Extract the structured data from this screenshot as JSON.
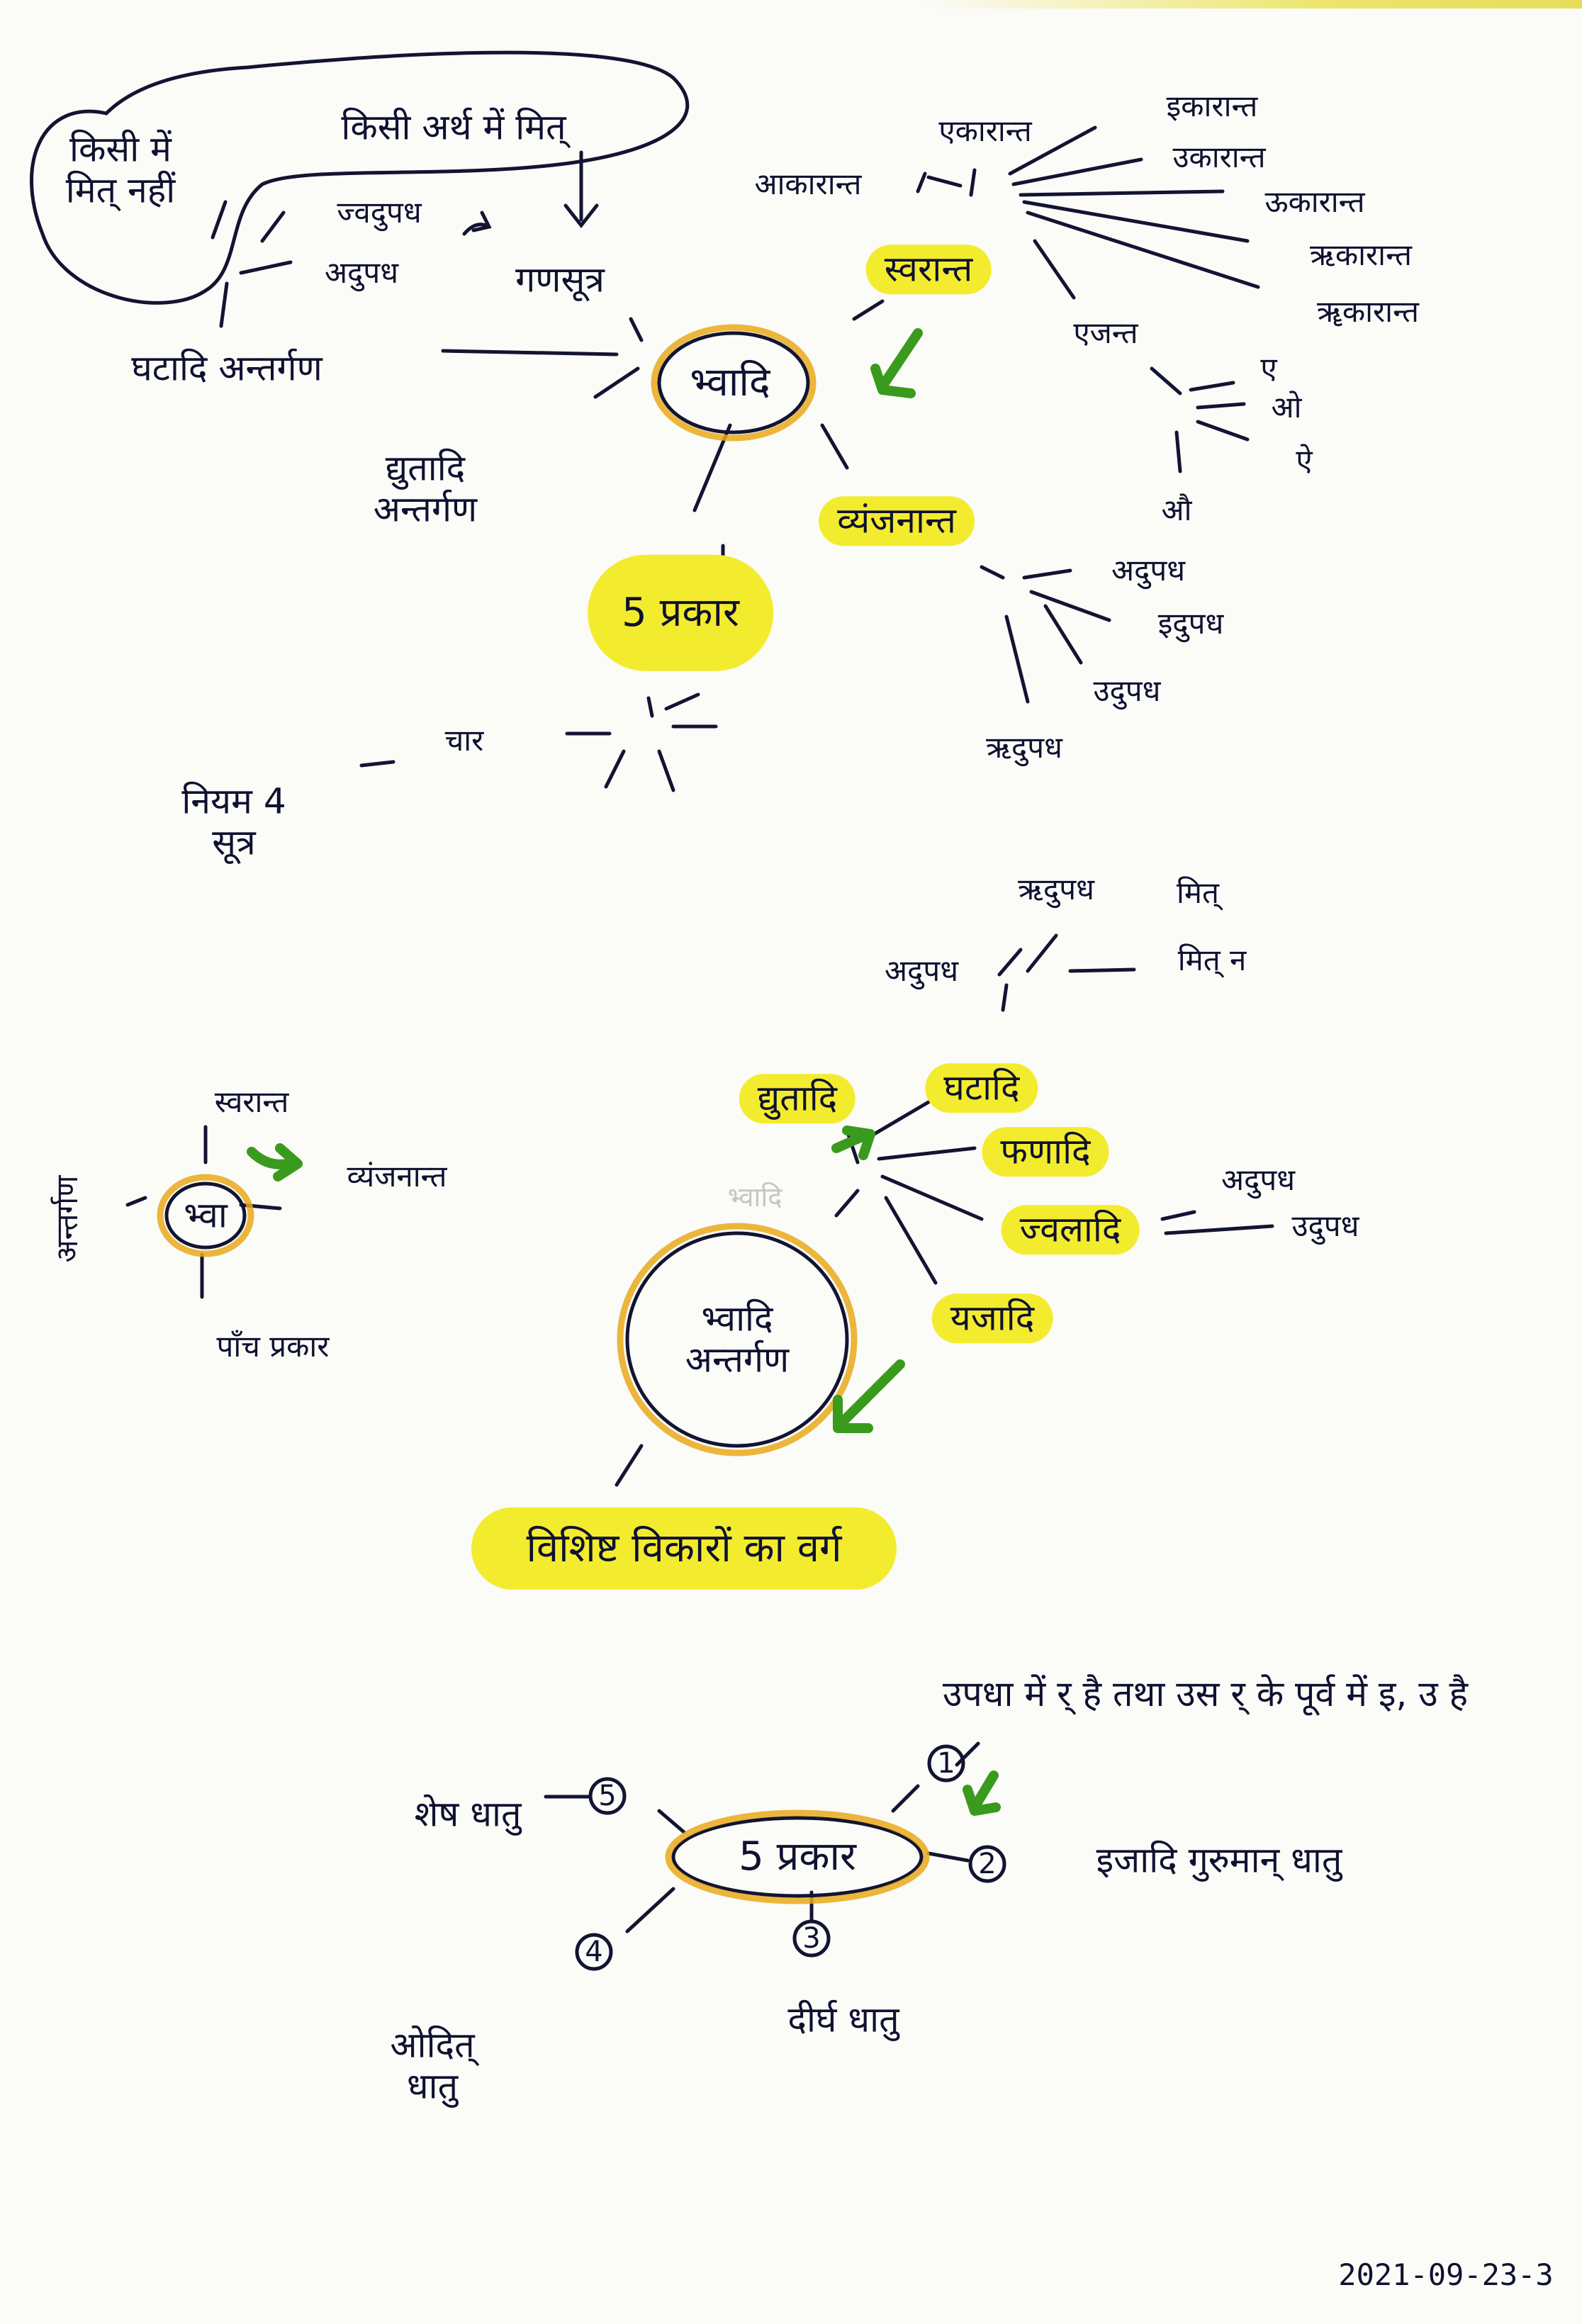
{
  "diagram_1": {
    "center": "भ्वादि",
    "gana_sutra": "गणसूत्र",
    "ghatadi": "घटादि अन्तर्गण",
    "dyutadi": "द्युतादि अन्तर्गण",
    "cloud_left": "किसी में मित् नहीं",
    "cloud_right": "किसी अर्थ में मित्",
    "cloud_items": [
      "ज्वदुपध",
      "अदुपध"
    ],
    "svaranta": "स्वरान्त",
    "svaranta_branches": [
      "आकारान्त",
      "एकारान्त",
      "इकारान्त",
      "उकारान्त",
      "ऊकारान्त",
      "ऋकारान्त",
      "ॠकारान्त"
    ],
    "ejanta": "एजन्त",
    "ejanta_branches": [
      "ए",
      "ओ",
      "ऐ",
      "औ"
    ],
    "vyanjananta": "व्यंजनान्त",
    "vyanjananta_branches": [
      "अदुपध",
      "इदुपध",
      "उदुपध",
      "ऋदुपध"
    ],
    "five_types": "5 प्रकार",
    "char_label": "चार",
    "niyam": "नियम 4 सूत्र"
  },
  "diagram_2": {
    "center": "भ्वा",
    "top": "स्वरान्त",
    "right": "व्यंजनान्त",
    "bottom": "पाँच प्रकार",
    "left": "अन्तर्गण"
  },
  "diagram_3": {
    "faint_label": "भ्वादि",
    "center": "भ्वादि अन्तर्गण",
    "nodes": [
      "द्युतादि",
      "घटादि",
      "फणादि",
      "ज्वलादि",
      "यजादि"
    ],
    "top_branches": [
      "ऋदुपध",
      "अदुपध",
      "मित्",
      "मित् न"
    ],
    "jvaladi_branches": [
      "अदुपध",
      "उदुपध"
    ],
    "result": "विशिष्ट विकारों का वर्ग"
  },
  "diagram_4": {
    "center": "5 प्रकार",
    "items": [
      {
        "num": "1",
        "text": "उपधा में र् है तथा उस र् के पूर्व में इ, उ है"
      },
      {
        "num": "2",
        "text": "इजादि गुरुमान् धातु"
      },
      {
        "num": "3",
        "text": "दीर्घ धातु"
      },
      {
        "num": "4",
        "text": "ओदित् धातु"
      },
      {
        "num": "5",
        "text": "शेष धातु"
      }
    ]
  },
  "date": "2021-09-23-3",
  "colors": {
    "ink": "#0f1130",
    "highlight": "#f3ec2e",
    "circle": "#e8a91a",
    "arrow": "#3a9a1e"
  }
}
